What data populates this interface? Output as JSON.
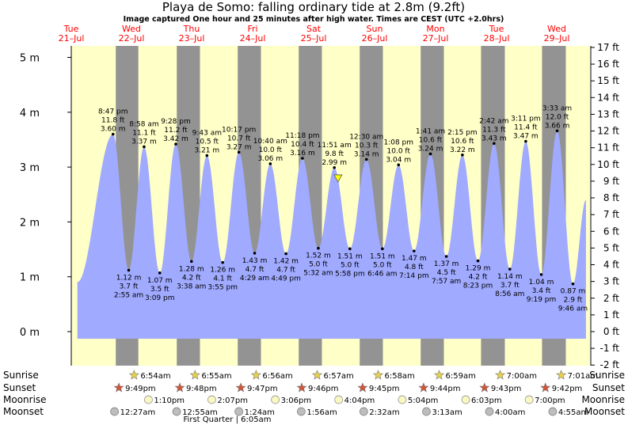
{
  "chart_data": {
    "type": "area",
    "title": "Playa de Somo: falling  ordinary tide at 2.8m (9.2ft)",
    "subtitle": "Image captured One hour and 25 minutes after high water. Times are CEST (UTC +2.0hrs)",
    "days": [
      {
        "dow": "Tue",
        "date": "21–Jul"
      },
      {
        "dow": "Wed",
        "date": "22–Jul"
      },
      {
        "dow": "Thu",
        "date": "23–Jul"
      },
      {
        "dow": "Fri",
        "date": "24–Jul"
      },
      {
        "dow": "Sat",
        "date": "25–Jul"
      },
      {
        "dow": "Sun",
        "date": "26–Jul"
      },
      {
        "dow": "Mon",
        "date": "27–Jul"
      },
      {
        "dow": "Tue",
        "date": "28–Jul"
      },
      {
        "dow": "Wed",
        "date": "29–Jul"
      }
    ],
    "y_left": {
      "unit": "m",
      "ticks": [
        "0 m",
        "1 m",
        "2 m",
        "3 m",
        "4 m",
        "5 m"
      ],
      "values": [
        0,
        1,
        2,
        3,
        4,
        5
      ]
    },
    "y_right": {
      "unit": "ft",
      "values": [
        -2,
        -1,
        0,
        1,
        2,
        3,
        4,
        5,
        6,
        7,
        8,
        9,
        10,
        11,
        12,
        13,
        14,
        15,
        16,
        17
      ],
      "ticks": [
        "-2 ft",
        "-1 ft",
        "0 ft",
        "1 ft",
        "2 ft",
        "3 ft",
        "4 ft",
        "5 ft",
        "6 ft",
        "7 ft",
        "8 ft",
        "9 ft",
        "10 ft",
        "11 ft",
        "12 ft",
        "13 ft",
        "14 ft",
        "15 ft",
        "16 ft",
        "17 ft"
      ]
    },
    "ylim": [
      -0.3,
      5.2
    ],
    "current": {
      "height_m": 2.8,
      "height_ft": 9.2,
      "marker": "triangle"
    },
    "night_color": "#939393",
    "day_color": "#ffffc8",
    "water_color": "#a0aaff",
    "tides": [
      {
        "type": "low",
        "time": "",
        "m": "",
        "ft": "",
        "h": 0.9,
        "day": 0.28
      },
      {
        "type": "high",
        "time": "8:47 pm",
        "m": "3.60 m",
        "ft": "11.8 ft",
        "h": 3.6,
        "day": 0.865
      },
      {
        "type": "low",
        "time": "2:55 am",
        "m": "1.12 m",
        "ft": "3.7 ft",
        "h": 1.12,
        "day": 1.122
      },
      {
        "type": "high",
        "time": "8:58 am",
        "m": "3.37 m",
        "ft": "11.1 ft",
        "h": 3.37,
        "day": 1.374
      },
      {
        "type": "low",
        "time": "3:09 pm",
        "m": "1.07 m",
        "ft": "3.5 ft",
        "h": 1.07,
        "day": 1.631
      },
      {
        "type": "high",
        "time": "9:28 pm",
        "m": "3.42 m",
        "ft": "11.2 ft",
        "h": 3.42,
        "day": 1.894
      },
      {
        "type": "low",
        "time": "3:38 am",
        "m": "1.28 m",
        "ft": "4.2 ft",
        "h": 1.28,
        "day": 2.151
      },
      {
        "type": "high",
        "time": "9:43 am",
        "m": "3.21 m",
        "ft": "10.5 ft",
        "h": 3.21,
        "day": 2.405
      },
      {
        "type": "low",
        "time": "3:55 pm",
        "m": "1.26 m",
        "ft": "4.1 ft",
        "h": 1.26,
        "day": 2.663
      },
      {
        "type": "high",
        "time": "10:17 pm",
        "m": "3.27 m",
        "ft": "10.7 ft",
        "h": 3.27,
        "day": 2.929
      },
      {
        "type": "low",
        "time": "4:29 am",
        "m": "1.43 m",
        "ft": "4.7 ft",
        "h": 1.43,
        "day": 3.187
      },
      {
        "type": "high",
        "time": "10:40 am",
        "m": "3.06 m",
        "ft": "10.0 ft",
        "h": 3.06,
        "day": 3.444
      },
      {
        "type": "low",
        "time": "4:49 pm",
        "m": "1.42 m",
        "ft": "4.7 ft",
        "h": 1.42,
        "day": 3.701
      },
      {
        "type": "high",
        "time": "11:18 pm",
        "m": "3.16 m",
        "ft": "10.4 ft",
        "h": 3.16,
        "day": 3.971
      },
      {
        "type": "low",
        "time": "5:32 am",
        "m": "1.52 m",
        "ft": "5.0 ft",
        "h": 1.52,
        "day": 4.231
      },
      {
        "type": "high",
        "time": "11:51 am",
        "m": "2.99 m",
        "ft": "9.8 ft",
        "h": 2.99,
        "day": 4.494
      },
      {
        "type": "low",
        "time": "5:58 pm",
        "m": "1.51 m",
        "ft": "5.0 ft",
        "h": 1.51,
        "day": 4.749
      },
      {
        "type": "high",
        "time": "12:30 am",
        "m": "3.14 m",
        "ft": "10.3 ft",
        "h": 3.14,
        "day": 5.021
      },
      {
        "type": "low",
        "time": "6:46 am",
        "m": "1.51 m",
        "ft": "5.0 ft",
        "h": 1.51,
        "day": 5.282
      },
      {
        "type": "high",
        "time": "1:08 pm",
        "m": "3.04 m",
        "ft": "10.0 ft",
        "h": 3.04,
        "day": 5.547
      },
      {
        "type": "low",
        "time": "7:14 pm",
        "m": "1.47 m",
        "ft": "4.8 ft",
        "h": 1.47,
        "day": 5.801
      },
      {
        "type": "high",
        "time": "1:41 am",
        "m": "3.24 m",
        "ft": "10.6 ft",
        "h": 3.24,
        "day": 6.07
      },
      {
        "type": "low",
        "time": "7:57 am",
        "m": "1.37 m",
        "ft": "4.5 ft",
        "h": 1.37,
        "day": 6.331
      },
      {
        "type": "high",
        "time": "2:15 pm",
        "m": "3.22 m",
        "ft": "10.6 ft",
        "h": 3.22,
        "day": 6.594
      },
      {
        "type": "low",
        "time": "8:23 pm",
        "m": "1.29 m",
        "ft": "4.2 ft",
        "h": 1.29,
        "day": 6.849
      },
      {
        "type": "high",
        "time": "2:42 am",
        "m": "3.43 m",
        "ft": "11.3 ft",
        "h": 3.43,
        "day": 7.113
      },
      {
        "type": "low",
        "time": "8:56 am",
        "m": "1.14 m",
        "ft": "3.7 ft",
        "h": 1.14,
        "day": 7.372
      },
      {
        "type": "high",
        "time": "3:11 pm",
        "m": "3.47 m",
        "ft": "11.4 ft",
        "h": 3.47,
        "day": 7.633
      },
      {
        "type": "low",
        "time": "9:19 pm",
        "m": "1.04 m",
        "ft": "3.4 ft",
        "h": 1.04,
        "day": 7.888
      },
      {
        "type": "high",
        "time": "3:33 am",
        "m": "3.66 m",
        "ft": "12.0 ft",
        "h": 3.66,
        "day": 8.148
      },
      {
        "type": "low",
        "time": "9:46 am",
        "m": "0.87 m",
        "ft": "2.9 ft",
        "h": 0.87,
        "day": 8.407
      },
      {
        "type": "high",
        "time": "",
        "m": "",
        "ft": "",
        "h": 2.4,
        "day": 8.62
      }
    ],
    "nights": [
      {
        "start": 0.91,
        "end": 1.28
      },
      {
        "start": 1.91,
        "end": 2.29
      },
      {
        "start": 2.91,
        "end": 3.29
      },
      {
        "start": 3.91,
        "end": 4.29
      },
      {
        "start": 4.91,
        "end": 5.29
      },
      {
        "start": 5.91,
        "end": 6.29
      },
      {
        "start": 6.9,
        "end": 7.29
      },
      {
        "start": 7.9,
        "end": 8.29
      }
    ],
    "astro": {
      "row_labels": [
        "Sunrise",
        "Sunset",
        "Moonrise",
        "Moonset"
      ],
      "sunrise": [
        {
          "t": "6:54am",
          "day": 1.288
        },
        {
          "t": "6:55am",
          "day": 2.288
        },
        {
          "t": "6:56am",
          "day": 3.289
        },
        {
          "t": "6:57am",
          "day": 4.29
        },
        {
          "t": "6:58am",
          "day": 5.29
        },
        {
          "t": "6:59am",
          "day": 6.291
        },
        {
          "t": "7:00am",
          "day": 7.292
        },
        {
          "t": "7:01am",
          "day": 8.292
        }
      ],
      "sunset": [
        {
          "t": "9:49pm",
          "day": 0.909
        },
        {
          "t": "9:48pm",
          "day": 1.908
        },
        {
          "t": "9:47pm",
          "day": 2.908
        },
        {
          "t": "9:46pm",
          "day": 3.907
        },
        {
          "t": "9:45pm",
          "day": 4.906
        },
        {
          "t": "9:44pm",
          "day": 5.906
        },
        {
          "t": "9:43pm",
          "day": 6.905
        },
        {
          "t": "9:42pm",
          "day": 7.904
        }
      ],
      "moonrise": [
        {
          "t": "1:10pm",
          "day": 1.549
        },
        {
          "t": "2:07pm",
          "day": 2.588
        },
        {
          "t": "3:06pm",
          "day": 3.629
        },
        {
          "t": "4:04pm",
          "day": 4.669
        },
        {
          "t": "5:04pm",
          "day": 5.711
        },
        {
          "t": "6:03pm",
          "day": 6.752
        },
        {
          "t": "7:00pm",
          "day": 7.792
        }
      ],
      "moonset": [
        {
          "t": "12:27am",
          "day": 1.019
        },
        {
          "t": "12:55am",
          "day": 2.038
        },
        {
          "t": "1:24am",
          "day": 3.058
        },
        {
          "t": "1:56am",
          "day": 4.081
        },
        {
          "t": "2:32am",
          "day": 5.106
        },
        {
          "t": "3:13am",
          "day": 6.134
        },
        {
          "t": "4:00am",
          "day": 7.167
        },
        {
          "t": "4:55am",
          "day": 8.205
        }
      ],
      "moon_phase": {
        "label": "First Quarter | 6:05am",
        "day": 3.25
      }
    }
  }
}
